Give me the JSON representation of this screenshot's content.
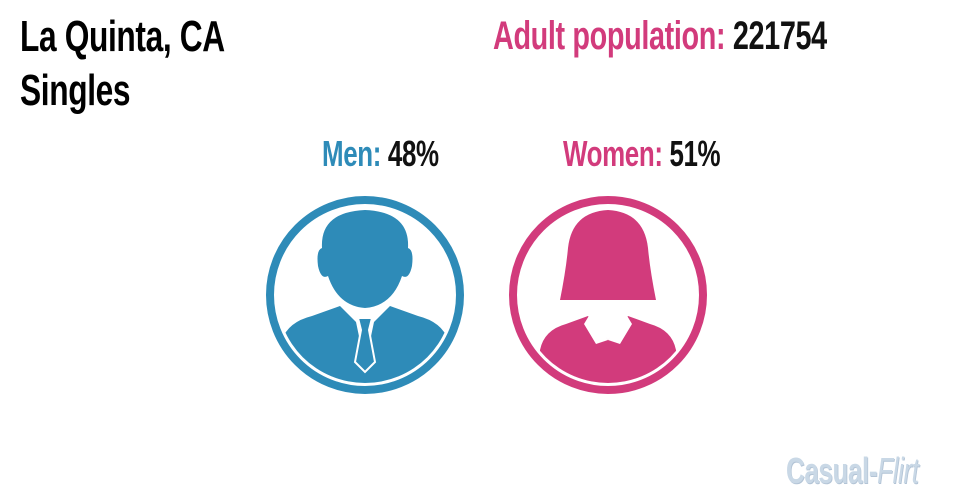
{
  "title": {
    "line1": "La Quinta, CA",
    "line2": "Singles"
  },
  "population": {
    "label": "Adult population:",
    "value": "221754"
  },
  "men": {
    "label": "Men:",
    "value": "48%"
  },
  "women": {
    "label": "Women:",
    "value": "51%"
  },
  "logo": {
    "part1": "Casual",
    "separator": "-",
    "part2": "Flirt"
  }
}
